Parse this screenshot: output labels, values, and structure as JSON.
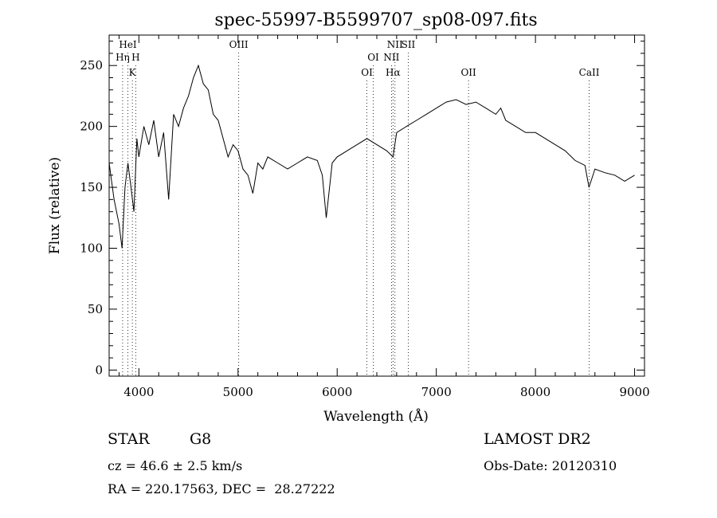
{
  "chart_data": {
    "type": "line",
    "title": "spec-55997-B5599707_sp08-097.fits",
    "xlabel": "Wavelength (Å)",
    "ylabel": "Flux (relative)",
    "xlim": [
      3700,
      9100
    ],
    "ylim": [
      -5,
      275
    ],
    "xticks": [
      4000,
      5000,
      6000,
      7000,
      8000,
      9000
    ],
    "yticks": [
      0,
      50,
      100,
      150,
      200,
      250
    ],
    "grid": false,
    "series": [
      {
        "x": [
          3700,
          3750,
          3800,
          3830,
          3860,
          3890,
          3920,
          3950,
          3980,
          4000,
          4050,
          4100,
          4150,
          4200,
          4250,
          4300,
          4350,
          4400,
          4450,
          4500,
          4550,
          4600,
          4650,
          4700,
          4750,
          4800,
          4850,
          4900,
          4950,
          5000,
          5050,
          5100,
          5150,
          5200,
          5250,
          5300,
          5400,
          5500,
          5600,
          5700,
          5800,
          5850,
          5890,
          5950,
          6000,
          6100,
          6200,
          6300,
          6400,
          6500,
          6563,
          6600,
          6700,
          6800,
          6900,
          7000,
          7100,
          7200,
          7300,
          7400,
          7500,
          7600,
          7650,
          7700,
          7800,
          7900,
          8000,
          8100,
          8200,
          8300,
          8400,
          8500,
          8540,
          8600,
          8700,
          8800,
          8900,
          9000
        ],
        "y": [
          170,
          140,
          120,
          100,
          150,
          170,
          150,
          130,
          190,
          175,
          200,
          185,
          205,
          175,
          195,
          140,
          210,
          200,
          215,
          225,
          240,
          250,
          235,
          230,
          210,
          205,
          190,
          175,
          185,
          180,
          165,
          160,
          145,
          170,
          165,
          175,
          170,
          165,
          170,
          175,
          172,
          160,
          125,
          170,
          175,
          180,
          185,
          190,
          185,
          180,
          175,
          195,
          200,
          205,
          210,
          215,
          220,
          222,
          218,
          220,
          215,
          210,
          215,
          205,
          200,
          195,
          195,
          190,
          185,
          180,
          172,
          168,
          150,
          165,
          162,
          160,
          155,
          160
        ]
      }
    ],
    "line_markers": [
      {
        "label": "HeI",
        "x": 3889,
        "row": 0
      },
      {
        "label": "Hη",
        "x": 3836,
        "row": 1
      },
      {
        "label": "H",
        "x": 3968,
        "row": 1
      },
      {
        "label": "K",
        "x": 3934,
        "row": 2
      },
      {
        "label": "OIII",
        "x": 5007,
        "row": 0
      },
      {
        "label": "OI",
        "x": 6364,
        "row": 1
      },
      {
        "label": "OI",
        "x": 6300,
        "row": 2
      },
      {
        "label": "NII",
        "x": 6583,
        "row": 0
      },
      {
        "label": "SII",
        "x": 6717,
        "row": 0
      },
      {
        "label": "NII",
        "x": 6548,
        "row": 1
      },
      {
        "label": "Hα",
        "x": 6563,
        "row": 2
      },
      {
        "label": "OII",
        "x": 7325,
        "row": 2
      },
      {
        "label": "CaII",
        "x": 8542,
        "row": 2
      }
    ]
  },
  "info": {
    "object_class": "STAR",
    "subclass": "G8",
    "survey": "LAMOST DR2",
    "redshift": "cz = 46.6 ± 2.5 km/s",
    "obs_date": "Obs-Date: 20120310",
    "coords": "RA = 220.17563, DEC =  28.27222"
  }
}
